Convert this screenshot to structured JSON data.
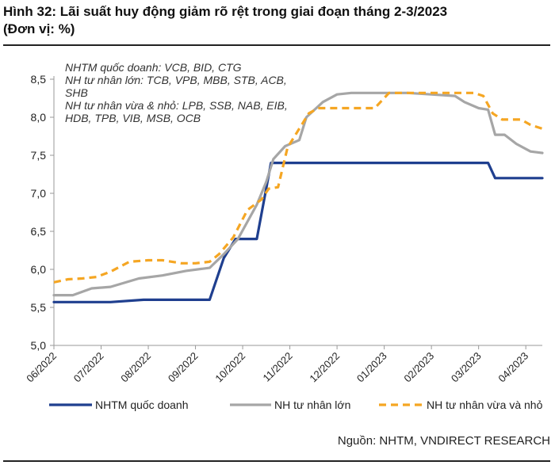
{
  "header": {
    "title_line1": "Hình 32: Lãi suất huy động giảm rõ rệt trong giai đoạn tháng 2-3/2023",
    "title_line2": "(Đơn vị: %)"
  },
  "source": "Nguồn: NHTM, VNDIRECT RESEARCH",
  "annotation": [
    "NHTM quốc doanh: VCB, BID, CTG",
    "NH tư nhân lớn: TCB, VPB, MBB, STB, ACB,",
    "SHB",
    "NH tư nhân vừa & nhỏ: LPB, SSB, NAB, EIB,",
    "HDB, TPB, VIB, MSB, OCB"
  ],
  "colors": {
    "state": "#1f3f8f",
    "large": "#a6a6a6",
    "small": "#f5a623",
    "axis": "#999999",
    "text": "#222222"
  },
  "chart_data": {
    "type": "line",
    "title": "Hình 32: Lãi suất huy động giảm rõ rệt trong giai đoạn tháng 2-3/2023",
    "ylabel": "",
    "xlabel": "",
    "ylim": [
      5.0,
      8.5
    ],
    "yticks": [
      "5,0",
      "5,5",
      "6,0",
      "6,5",
      "7,0",
      "7,5",
      "8,0",
      "8,5"
    ],
    "grid": false,
    "legend_position": "bottom",
    "categories": [
      "06/2022",
      "07/2022",
      "08/2022",
      "09/2022",
      "10/2022",
      "11/2022",
      "12/2022",
      "01/2023",
      "02/2023",
      "03/2023",
      "04/2023"
    ],
    "series": [
      {
        "name": "NHTM quốc doanh",
        "color_key": "state",
        "dashed": false,
        "points": [
          [
            0,
            5.57
          ],
          [
            1.2,
            5.57
          ],
          [
            1.9,
            5.6
          ],
          [
            3.3,
            5.6
          ],
          [
            3.6,
            6.15
          ],
          [
            3.85,
            6.4
          ],
          [
            4.3,
            6.4
          ],
          [
            4.6,
            7.4
          ],
          [
            7.2,
            7.4
          ],
          [
            8.3,
            7.4
          ],
          [
            9.2,
            7.4
          ],
          [
            9.35,
            7.2
          ],
          [
            10.35,
            7.2
          ]
        ]
      },
      {
        "name": "NH tư nhân lớn",
        "color_key": "large",
        "dashed": false,
        "points": [
          [
            0,
            5.66
          ],
          [
            0.4,
            5.66
          ],
          [
            0.8,
            5.75
          ],
          [
            1.2,
            5.77
          ],
          [
            1.8,
            5.88
          ],
          [
            2.3,
            5.92
          ],
          [
            2.8,
            5.98
          ],
          [
            3.3,
            6.02
          ],
          [
            3.6,
            6.2
          ],
          [
            3.9,
            6.4
          ],
          [
            4.3,
            6.85
          ],
          [
            4.5,
            7.15
          ],
          [
            4.65,
            7.45
          ],
          [
            4.9,
            7.62
          ],
          [
            5.2,
            7.7
          ],
          [
            5.35,
            8.0
          ],
          [
            5.7,
            8.2
          ],
          [
            6.0,
            8.3
          ],
          [
            6.3,
            8.32
          ],
          [
            7.5,
            8.32
          ],
          [
            8.0,
            8.3
          ],
          [
            8.5,
            8.28
          ],
          [
            8.7,
            8.2
          ],
          [
            9.0,
            8.12
          ],
          [
            9.2,
            8.1
          ],
          [
            9.35,
            7.77
          ],
          [
            9.55,
            7.77
          ],
          [
            9.8,
            7.65
          ],
          [
            10.1,
            7.55
          ],
          [
            10.35,
            7.53
          ]
        ]
      },
      {
        "name": "NH tư nhân vừa và nhỏ",
        "color_key": "small",
        "dashed": true,
        "points": [
          [
            0,
            5.83
          ],
          [
            0.3,
            5.87
          ],
          [
            0.6,
            5.88
          ],
          [
            0.9,
            5.9
          ],
          [
            1.2,
            5.97
          ],
          [
            1.6,
            6.1
          ],
          [
            2.0,
            6.12
          ],
          [
            2.3,
            6.12
          ],
          [
            2.7,
            6.08
          ],
          [
            3.0,
            6.08
          ],
          [
            3.3,
            6.1
          ],
          [
            3.5,
            6.2
          ],
          [
            3.8,
            6.42
          ],
          [
            4.1,
            6.78
          ],
          [
            4.4,
            6.92
          ],
          [
            4.55,
            7.06
          ],
          [
            4.75,
            7.08
          ],
          [
            4.95,
            7.6
          ],
          [
            5.15,
            7.8
          ],
          [
            5.4,
            8.05
          ],
          [
            5.6,
            8.12
          ],
          [
            6.8,
            8.12
          ],
          [
            7.1,
            8.32
          ],
          [
            7.6,
            8.32
          ],
          [
            8.9,
            8.32
          ],
          [
            9.1,
            8.28
          ],
          [
            9.3,
            8.05
          ],
          [
            9.5,
            7.97
          ],
          [
            9.9,
            7.97
          ],
          [
            10.1,
            7.9
          ],
          [
            10.35,
            7.85
          ]
        ]
      }
    ]
  }
}
